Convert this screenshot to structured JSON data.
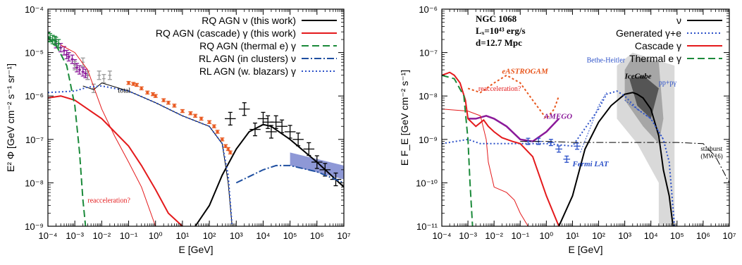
{
  "chart_data": [
    {
      "type": "line",
      "panel": "left",
      "xlabel": "E [GeV]",
      "ylabel": "E² Φ [GeV cm⁻² s⁻¹ sr⁻¹]",
      "xlog": true,
      "ylog": true,
      "xlim": [
        0.0001,
        10000000.0
      ],
      "ylim": [
        1e-09,
        0.0001
      ],
      "xtick_labels": [
        "10⁻⁴",
        "10⁻³",
        "10⁻²",
        "10⁻¹",
        "10⁰",
        "10¹",
        "10²",
        "10³",
        "10⁴",
        "10⁵",
        "10⁶",
        "10⁷"
      ],
      "ytick_labels": [
        "10⁻⁹",
        "10⁻⁸",
        "10⁻⁷",
        "10⁻⁶",
        "10⁻⁵",
        "10⁻⁴"
      ],
      "legend_position": "top-right",
      "series": [
        {
          "name": "RQ AGN ν (this work)",
          "color": "#000000",
          "style": "solid",
          "x": [
            30,
            100,
            300,
            1000,
            3000,
            10000,
            20000,
            100000,
            1000000,
            10000000
          ],
          "y": [
            1e-09,
            3e-09,
            1.5e-08,
            6e-08,
            1.5e-07,
            2.2e-07,
            2e-07,
            1e-07,
            3e-08,
            8e-09
          ]
        },
        {
          "name": "RQ AGN (cascade) γ (this work)",
          "color": "#e41a1c",
          "style": "solid",
          "x": [
            0.0001,
            0.0003,
            0.001,
            0.003,
            0.01,
            0.03,
            0.1,
            0.3,
            1,
            3,
            10
          ],
          "y": [
            9e-07,
            1e-06,
            8e-07,
            5e-07,
            3e-07,
            1.5e-07,
            7e-08,
            2.5e-08,
            7e-09,
            2e-09,
            1e-09
          ]
        },
        {
          "name": "RQ AGN (thermal e) γ",
          "color": "#1b8a3a",
          "style": "dashed",
          "x": [
            0.0001,
            0.0002,
            0.0005,
            0.001,
            0.0015,
            0.002,
            0.0025
          ],
          "y": [
            2.2e-05,
            1.5e-05,
            5e-06,
            6e-07,
            5e-08,
            4e-09,
            1e-09
          ]
        },
        {
          "name": "RL AGN (in clusters) ν",
          "color": "#1f4fa0",
          "style": "dashdot",
          "x": [
            1000,
            10000,
            30000,
            100000,
            1000000,
            10000000
          ],
          "y": [
            1e-08,
            2e-08,
            2.5e-08,
            2.5e-08,
            1.8e-08,
            1e-08
          ]
        },
        {
          "name": "RL AGN (w. blazars) γ",
          "color": "#2b50c8",
          "style": "dotted",
          "x": [
            0.0001,
            0.001,
            0.003,
            0.01,
            0.1,
            1,
            10,
            100,
            300,
            500,
            700
          ],
          "y": [
            1.2e-06,
            1.3e-06,
            1.6e-06,
            1.7e-06,
            1.3e-06,
            7e-07,
            3.5e-07,
            2e-07,
            8e-08,
            1.5e-08,
            1e-09
          ]
        }
      ],
      "extra_curves": [
        {
          "label": "total",
          "color": "#000000",
          "x": [
            0.002,
            0.005,
            0.01,
            0.1,
            1,
            10,
            100,
            300,
            500,
            700
          ],
          "y": [
            1.7e-06,
            1.4e-06,
            2e-06,
            1.3e-06,
            7e-07,
            3.5e-07,
            2e-07,
            8e-08,
            1e-08,
            1e-09
          ]
        },
        {
          "label": "reacceleration?",
          "color": "#e41a1c",
          "x": [
            0.0003,
            0.001,
            0.003,
            0.006,
            0.01,
            0.03,
            0.1,
            0.3,
            1
          ],
          "y": [
            1.5e-05,
            1e-05,
            4e-06,
            1.2e-06,
            5e-07,
            1.2e-07,
            3e-08,
            8e-09,
            1e-09
          ]
        }
      ],
      "data_sets": [
        {
          "label": "purple",
          "color": "#8b1a9a",
          "x": [
            0.0002,
            0.0003,
            0.0004,
            0.0005,
            0.0006,
            0.0008,
            0.001,
            0.0012,
            0.0015,
            0.002,
            0.0025,
            0.003
          ],
          "y": [
            1.6e-05,
            1.3e-05,
            1.1e-05,
            9e-06,
            8e-06,
            7e-06,
            5.5e-06,
            4.5e-06,
            4e-06,
            3.6e-06,
            3.3e-06,
            3e-06
          ]
        },
        {
          "label": "green",
          "color": "#1b8a3a",
          "x": [
            0.0001,
            0.00012,
            0.00015,
            0.00018,
            0.0002,
            0.00025
          ],
          "y": [
            2.3e-05,
            2.2e-05,
            2e-05,
            1.9e-05,
            1.8e-05,
            1.6e-05
          ]
        },
        {
          "label": "gray",
          "color": "#999999",
          "x": [
            0.001,
            0.002,
            0.003,
            0.005,
            0.008,
            0.012,
            0.02
          ],
          "y": [
            5e-06,
            6e-06,
            3e-06,
            1.5e-06,
            3e-06,
            2.5e-06,
            3e-06
          ]
        },
        {
          "label": "orange",
          "color": "#e8561c",
          "x": [
            0.1,
            0.15,
            0.2,
            0.3,
            0.5,
            0.8,
            1,
            2,
            3,
            5,
            10,
            20,
            30,
            50,
            100,
            150,
            200,
            300,
            400,
            500,
            600
          ],
          "y": [
            2e-06,
            1.9e-06,
            1.8e-06,
            1.5e-06,
            1.2e-06,
            1.1e-06,
            1e-06,
            8e-07,
            7e-07,
            6e-07,
            4.5e-07,
            4e-07,
            3.5e-07,
            3e-07,
            2.5e-07,
            2e-07,
            1.5e-07,
            1e-07,
            7e-08,
            6e-08,
            5e-08
          ]
        },
        {
          "label": "icecube",
          "color": "#000000",
          "x": [
            600,
            2000,
            5000,
            10000,
            15000,
            20000,
            30000,
            50000,
            100000,
            200000,
            500000,
            1000000,
            2000000,
            5000000
          ],
          "y": [
            3e-07,
            5e-07,
            1.7e-07,
            3e-07,
            2.5e-07,
            1.5e-07,
            2.5e-07,
            2e-07,
            1.5e-07,
            1e-07,
            6e-08,
            3e-08,
            2e-08,
            1.2e-08
          ]
        }
      ],
      "band": {
        "color": "#7a86cf",
        "x": [
          100000,
          10000000
        ],
        "y_low": [
          2.5e-08,
          1.2e-08
        ],
        "y_high": [
          5e-08,
          2.5e-08
        ]
      }
    },
    {
      "type": "line",
      "panel": "right",
      "xlabel": "E [GeV]",
      "ylabel": "E F_E [GeV cm⁻² s⁻¹]",
      "xlog": true,
      "ylog": true,
      "xlim": [
        0.0001,
        10000000.0
      ],
      "ylim": [
        1e-11,
        1e-06
      ],
      "xtick_labels": [
        "10⁻⁴",
        "10⁻³",
        "10⁻²",
        "10⁻¹",
        "10⁰",
        "10¹",
        "10²",
        "10³",
        "10⁴",
        "10⁵",
        "10⁶",
        "10⁷"
      ],
      "ytick_labels": [
        "10⁻¹¹",
        "10⁻¹⁰",
        "10⁻⁹",
        "10⁻⁸",
        "10⁻⁷",
        "10⁻⁶"
      ],
      "title_lines": [
        "NGC 1068",
        "Lₓ=10⁴³ erg/s",
        "d=12.7 Mpc"
      ],
      "legend_position": "top-right",
      "series": [
        {
          "name": "ν",
          "color": "#000000",
          "style": "solid",
          "x": [
            3,
            10,
            30,
            100,
            300,
            1000,
            2000,
            3000,
            5000,
            10000,
            20000,
            30000,
            50000,
            70000
          ],
          "y": [
            1e-11,
            5e-11,
            6e-10,
            2.5e-09,
            6e-09,
            1.1e-08,
            1.2e-08,
            1.1e-08,
            9e-09,
            5e-09,
            1.2e-09,
            2e-10,
            5e-11,
            1e-11
          ]
        },
        {
          "name": "Generated γ+e",
          "color": "#2b50c8",
          "style": "dotted",
          "x": [
            0.0001,
            0.001,
            0.003,
            0.1,
            1,
            10,
            100,
            200,
            500,
            1000,
            3000,
            10000,
            30000,
            50000,
            80000
          ],
          "y": [
            8e-10,
            1e-09,
            8e-10,
            8e-10,
            8e-10,
            7e-10,
            5e-09,
            1.1e-08,
            1.3e-08,
            1e-08,
            5e-09,
            3e-09,
            1e-09,
            3e-10,
            1e-11
          ]
        },
        {
          "name": "Cascade γ",
          "color": "#e41a1c",
          "style": "solid",
          "x": [
            0.0001,
            0.0002,
            0.0003,
            0.0005,
            0.0008,
            0.001,
            0.002,
            0.004,
            0.006,
            0.01,
            0.02,
            0.05,
            0.1,
            0.3,
            1,
            3
          ],
          "y": [
            3e-08,
            3.5e-08,
            3e-08,
            2e-08,
            8e-09,
            3e-09,
            2e-09,
            2.8e-09,
            2e-09,
            1.5e-09,
            1.1e-09,
            9e-10,
            8e-10,
            4e-10,
            5e-11,
            1e-11
          ]
        },
        {
          "name": "Thermal e γ",
          "color": "#1b8a3a",
          "style": "dashed",
          "x": [
            0.0001,
            0.0003,
            0.0007,
            0.001,
            0.0012,
            0.0015
          ],
          "y": [
            3e-08,
            2.5e-08,
            1e-08,
            1e-09,
            1e-10,
            1e-11
          ]
        }
      ],
      "extra_curves": [
        {
          "label": "reacceleration?",
          "color": "#e41a1c",
          "x": [
            0.0001,
            0.001,
            0.003,
            0.005,
            0.006,
            0.01,
            0.03,
            0.06,
            0.1,
            0.2
          ],
          "y": [
            5e-09,
            4.5e-09,
            3.5e-09,
            1e-09,
            3e-10,
            8e-11,
            6e-11,
            4e-11,
            2e-11,
            1e-11
          ]
        },
        {
          "label": "Bethe-Heitler",
          "color": "#2b50c8",
          "x": [
            20,
            50,
            100,
            200
          ],
          "y": [
            5e-10,
            2e-09,
            6e-09,
            1.2e-08
          ]
        },
        {
          "label": "pp+pγ",
          "color": "#2b50c8",
          "x": [
            1000,
            3000,
            10000,
            30000
          ],
          "y": [
            8e-09,
            5e-09,
            3e-09,
            1e-09
          ]
        },
        {
          "label": "starburst (MW16)",
          "color": "#000000",
          "x": [
            0.1,
            1,
            10,
            100,
            1000,
            10000,
            100000,
            1000000,
            3000000,
            10000000
          ],
          "y": [
            9e-10,
            9e-10,
            8.5e-10,
            8.5e-10,
            8.5e-10,
            8.5e-10,
            8.5e-10,
            8e-10,
            4e-10,
            1e-10
          ]
        }
      ],
      "sensitivities": [
        {
          "label": "eASTROGAM",
          "color": "#e8561c",
          "x": [
            0.001,
            0.003,
            0.01,
            0.03,
            0.1,
            0.3,
            1,
            2,
            3
          ],
          "y": [
            1.5e-08,
            1.2e-08,
            2e-08,
            3e-08,
            2e-08,
            8e-09,
            3e-09,
            5e-09,
            1e-08
          ]
        },
        {
          "label": "AMEGO",
          "color": "#8b1a9a",
          "x": [
            0.001,
            0.002,
            0.005,
            0.01,
            0.03,
            0.1,
            0.3,
            1,
            3
          ],
          "y": [
            3e-09,
            3e-09,
            3.5e-09,
            3e-09,
            2e-09,
            1e-09,
            9e-10,
            1.5e-09,
            3e-09
          ]
        }
      ],
      "fermi_points": {
        "label": "Fermi LAT",
        "color": "#2b50c8",
        "x": [
          0.2,
          0.5,
          1.5,
          3,
          6,
          15
        ],
        "y": [
          9e-10,
          9e-10,
          8.5e-10,
          6e-10,
          3.5e-10,
          7e-10
        ]
      },
      "icecube_contour": {
        "label": "IceCube",
        "color": "#555555"
      },
      "annotations": [
        "Bethe-Heitler",
        "IceCube",
        "pp+pγ",
        "starburst",
        "(MW16)",
        "eASTROGAM",
        "AMEGO",
        "Fermi LAT",
        "reacceleration?"
      ]
    }
  ]
}
